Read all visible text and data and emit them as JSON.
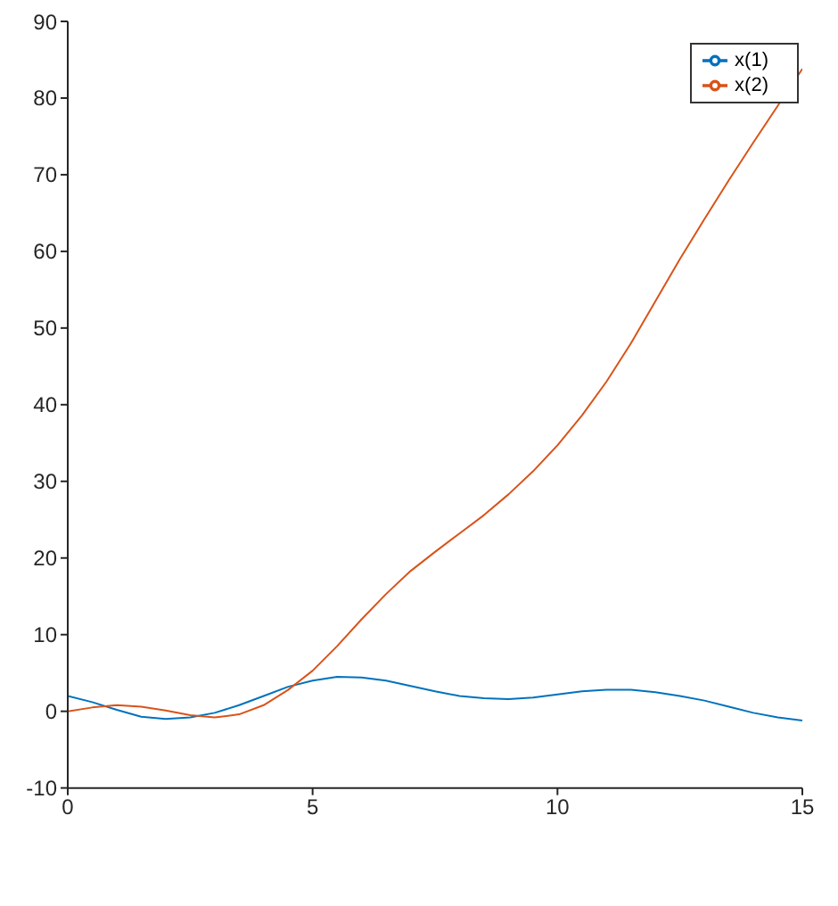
{
  "chart_data": {
    "type": "line",
    "x": [
      0,
      0.5,
      1,
      1.5,
      2,
      2.5,
      3,
      3.5,
      4,
      4.5,
      5,
      5.5,
      6,
      6.5,
      7,
      7.5,
      8,
      8.5,
      9,
      9.5,
      10,
      10.5,
      11,
      11.5,
      12,
      12.5,
      13,
      13.5,
      14,
      14.5,
      15
    ],
    "series": [
      {
        "name": "x(1)",
        "color": "#0072bd",
        "values": [
          2,
          1.2,
          0.2,
          -0.7,
          -1,
          -0.8,
          -0.2,
          0.8,
          2,
          3.2,
          4,
          4.5,
          4.4,
          4,
          3.3,
          2.6,
          2,
          1.7,
          1.6,
          1.8,
          2.2,
          2.6,
          2.8,
          2.8,
          2.5,
          2,
          1.4,
          0.6,
          -0.2,
          -0.8,
          -1.2
        ]
      },
      {
        "name": "x(2)",
        "color": "#d95319",
        "values": [
          0,
          0.5,
          0.8,
          0.6,
          0.1,
          -0.5,
          -0.8,
          -0.4,
          0.8,
          2.8,
          5.3,
          8.5,
          12,
          15.3,
          18.3,
          20.8,
          23.2,
          25.6,
          28.3,
          31.3,
          34.7,
          38.6,
          43,
          48,
          53.5,
          59,
          64.2,
          69.3,
          74.2,
          79,
          83.8
        ]
      }
    ],
    "xlim": [
      0,
      15
    ],
    "xticks": [
      0,
      5,
      10,
      15
    ],
    "ylim": [
      -10,
      90
    ],
    "yticks": [
      -10,
      0,
      10,
      20,
      30,
      40,
      50,
      60,
      70,
      80,
      90
    ],
    "legend": "top right",
    "grid": false,
    "marker": "none",
    "line_style": "solid"
  }
}
